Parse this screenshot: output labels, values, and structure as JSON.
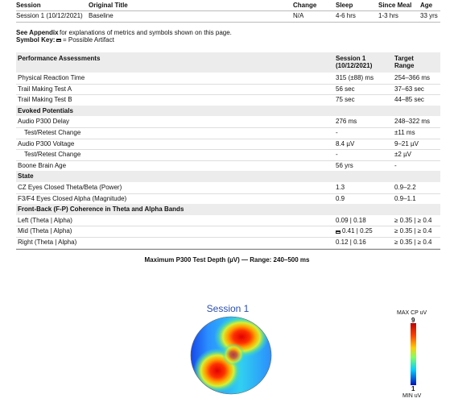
{
  "header": {
    "columns": [
      "Session",
      "Original Title",
      "Change",
      "Sleep",
      "Since Meal",
      "Age"
    ],
    "values": [
      "Session 1 (10/12/2021)",
      "Baseline",
      "N/A",
      "4-6 hrs",
      "1-3 hrs",
      "33 yrs"
    ]
  },
  "appendix": {
    "bold": "See Appendix",
    "text": "for explanations of metrics and symbols shown on this page."
  },
  "symbol_key": {
    "label": "Symbol Key:",
    "text": "= Possible Artifact"
  },
  "table": {
    "columns": [
      "Performance Assessments",
      "Session 1",
      "(10/12/2021)",
      "Target",
      "Range"
    ],
    "rows": [
      {
        "label": "Physical Reaction Time",
        "session": "315 (±88) ms",
        "target": "254–366 ms"
      },
      {
        "label": "Trail Making Test A",
        "session": "56 sec",
        "target": "37–63 sec"
      },
      {
        "label": "Trail Making Test B",
        "session": "75 sec",
        "target": "44–85 sec"
      },
      {
        "section": "Evoked Potentials"
      },
      {
        "label": "Audio P300 Delay",
        "session": "276 ms",
        "target": "248–322 ms",
        "sub": {
          "label": "Test/Retest Change",
          "session": "-",
          "target": "±11 ms"
        }
      },
      {
        "label": "Audio P300 Voltage",
        "session": "8.4 µV",
        "target": "9–21 µV",
        "sub": {
          "label": "Test/Retest Change",
          "session": "-",
          "target": "±2 µV"
        }
      },
      {
        "label": "Boone Brain Age",
        "session": "56 yrs",
        "target": "-"
      },
      {
        "section": "State"
      },
      {
        "label": "CZ Eyes Closed Theta/Beta (Power)",
        "session": "1.3",
        "target": "0.9–2.2"
      },
      {
        "label": "F3/F4 Eyes Closed Alpha (Magnitude)",
        "session": "0.9",
        "target": "0.9–1.1"
      },
      {
        "section": "Front-Back (F-P) Coherence in Theta and Alpha Bands"
      },
      {
        "label": "Left (Theta | Alpha)",
        "session": "0.09 | 0.18",
        "target": "≥ 0.35 | ≥ 0.4"
      },
      {
        "label": "Mid (Theta | Alpha)",
        "session": "0.41 | 0.25",
        "target": "≥ 0.35 | ≥ 0.4",
        "artifact": true
      },
      {
        "label": "Right (Theta | Alpha)",
        "session": "0.12 | 0.16",
        "target": "≥ 0.35 | ≥ 0.4"
      }
    ]
  },
  "map": {
    "heading": "Maximum P300 Test Depth (µV) — Range: 240–500 ms",
    "title": "Session 1",
    "colorbar": {
      "top_label": "MAX CP uV",
      "max": "9",
      "min": "1",
      "bottom_label": "MIN uV"
    }
  }
}
